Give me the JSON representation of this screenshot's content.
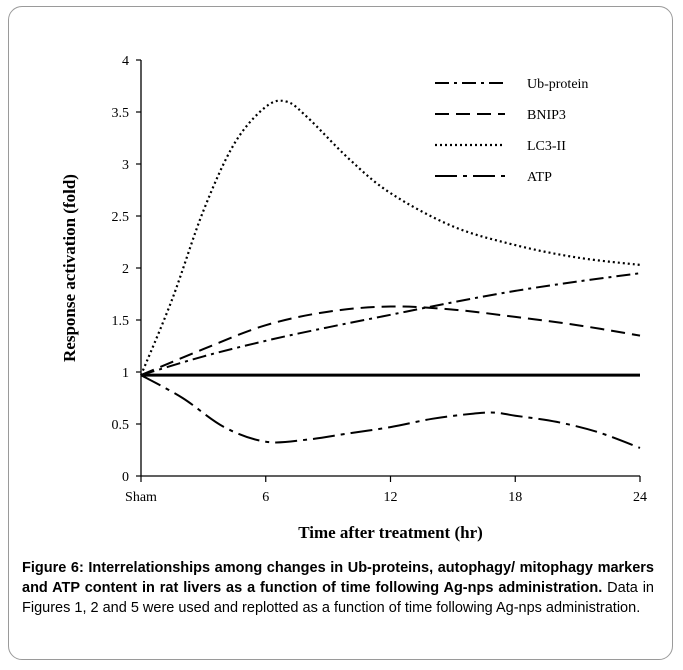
{
  "chart_data": {
    "type": "line",
    "x_tick_labels": [
      "Sham",
      "6",
      "12",
      "18",
      "24"
    ],
    "x_tick_values": [
      0,
      6,
      12,
      18,
      24
    ],
    "xlim": [
      0,
      24
    ],
    "ylim": [
      0,
      4
    ],
    "y_ticks": [
      "0",
      "0.5",
      "1",
      "1.5",
      "2",
      "2.5",
      "3",
      "3.5",
      "4"
    ],
    "y_tick_values": [
      0,
      0.5,
      1,
      1.5,
      2,
      2.5,
      3,
      3.5,
      4
    ],
    "xlabel": "Time after treatment (hr)",
    "ylabel": "Response activation (fold)",
    "grid": false,
    "legend_position": "top-right",
    "baseline": 0.97,
    "series": [
      {
        "name": "Ub-protein",
        "style": "dashdot",
        "x": [
          0,
          3,
          6,
          9,
          12,
          15,
          18,
          21,
          24
        ],
        "values": [
          0.97,
          1.15,
          1.3,
          1.43,
          1.55,
          1.67,
          1.78,
          1.87,
          1.95
        ]
      },
      {
        "name": "BNIP3",
        "style": "dashed",
        "x": [
          0,
          3,
          6,
          9,
          12,
          15,
          18,
          21,
          24
        ],
        "values": [
          0.97,
          1.22,
          1.45,
          1.58,
          1.63,
          1.6,
          1.53,
          1.45,
          1.35
        ]
      },
      {
        "name": "LC3-II",
        "style": "dotted",
        "x": [
          0,
          1.5,
          3,
          4.5,
          6,
          7,
          8,
          10,
          12,
          15,
          18,
          21,
          24
        ],
        "values": [
          0.97,
          1.7,
          2.55,
          3.2,
          3.55,
          3.6,
          3.45,
          3.05,
          2.72,
          2.4,
          2.22,
          2.1,
          2.03
        ]
      },
      {
        "name": "ATP",
        "style": "longdashdot",
        "x": [
          0,
          2,
          4,
          6,
          8,
          10,
          12,
          14,
          16,
          17,
          18,
          20,
          22,
          24
        ],
        "values": [
          0.97,
          0.75,
          0.47,
          0.33,
          0.35,
          0.41,
          0.47,
          0.55,
          0.6,
          0.61,
          0.58,
          0.52,
          0.42,
          0.27
        ]
      }
    ]
  },
  "caption": {
    "bold": "Figure 6: Interrelationships among changes in Ub-proteins, autophagy/ mitophagy markers and ATP content in rat livers as a function of time following Ag-nps administration.",
    "text": " Data in Figures 1, 2 and 5 were used and replotted as a function of time following Ag-nps administration."
  }
}
